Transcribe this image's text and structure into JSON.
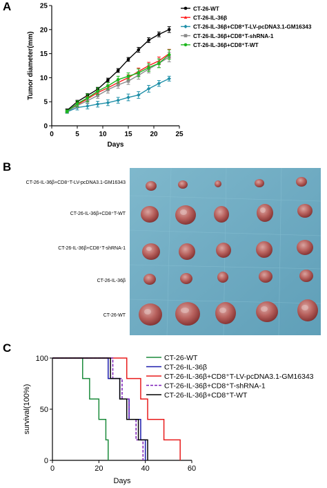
{
  "panels": {
    "a": "A",
    "b": "B",
    "c": "C"
  },
  "colors": {
    "wt": "#000000",
    "il36b": "#ff1a1a",
    "lv": "#1f8fa8",
    "sh": "#8a8a8a",
    "cd8wt": "#1db71d",
    "surv_wt": "#1a8a3a",
    "surv_il36b": "#1a1aaa",
    "surv_lv": "#e81a1a",
    "surv_sh": "#7a1ab8",
    "surv_cd8wt": "#000000"
  },
  "panel_b": {
    "row_labels": [
      "CT-26-IL-36β+CD8⁺T-LV-pcDNA3.1-GM16343",
      "CT-26-IL-36β+CD8⁺T-WT",
      "CT-26-IL-36β+CD8⁺T-shRNA-1",
      "CT-26-IL-36β",
      "CT-26-WT"
    ]
  },
  "chart_data": [
    {
      "type": "line",
      "xlabel": "Days",
      "ylabel": "Tumor diameter(mm)",
      "xlim": [
        0,
        25
      ],
      "ylim": [
        0,
        25
      ],
      "xticks": [
        0,
        5,
        10,
        15,
        20,
        25
      ],
      "yticks": [
        0,
        5,
        10,
        15,
        20,
        25
      ],
      "x": [
        3,
        5,
        7,
        9,
        11,
        13,
        15,
        17,
        19,
        21,
        23
      ],
      "legend_position": "top-right",
      "series": [
        {
          "name": "CT-26-WT",
          "marker": "dot",
          "values": [
            3.2,
            5.0,
            6.3,
            7.6,
            9.5,
            11.5,
            13.8,
            15.8,
            17.8,
            19.0,
            20.0
          ],
          "errors": [
            0.3,
            0.3,
            0.4,
            0.4,
            0.4,
            0.4,
            0.4,
            0.5,
            0.5,
            0.5,
            0.6
          ]
        },
        {
          "name": "CT-26-IL-36β",
          "marker": "triangle",
          "values": [
            3.0,
            4.4,
            5.6,
            6.9,
            7.9,
            9.0,
            10.0,
            11.3,
            12.5,
            13.5,
            15.0
          ],
          "errors": [
            0.3,
            0.4,
            0.5,
            0.5,
            0.6,
            0.6,
            0.6,
            0.7,
            0.7,
            0.8,
            0.9
          ]
        },
        {
          "name": "CT-26-IL-36β+CD8⁺T-LV-pcDNA3.1-GM16343",
          "marker": "diamond",
          "values": [
            2.9,
            3.8,
            4.1,
            4.5,
            4.8,
            5.3,
            5.9,
            6.4,
            7.7,
            8.8,
            9.8
          ],
          "errors": [
            0.3,
            0.5,
            0.6,
            0.6,
            0.6,
            0.6,
            0.7,
            0.7,
            0.7,
            0.6,
            0.5
          ]
        },
        {
          "name": "CT-26-IL-36β+CD8⁺T-shRNA-1",
          "marker": "square",
          "values": [
            3.0,
            4.2,
            5.2,
            6.3,
            7.5,
            8.5,
            9.3,
            10.5,
            11.8,
            13.0,
            14.3
          ],
          "errors": [
            0.3,
            0.5,
            0.6,
            0.6,
            0.7,
            0.7,
            0.7,
            0.8,
            0.8,
            0.9,
            1.0
          ]
        },
        {
          "name": "CT-26-IL-36β+CD8⁺T-WT",
          "marker": "dot",
          "values": [
            3.0,
            4.6,
            5.8,
            7.2,
            8.3,
            9.6,
            10.3,
            11.0,
            12.1,
            13.0,
            14.8
          ],
          "errors": [
            0.3,
            0.6,
            0.8,
            0.7,
            0.7,
            0.7,
            0.7,
            0.8,
            0.8,
            0.9,
            1.0
          ]
        }
      ]
    },
    {
      "type": "line",
      "step": true,
      "xlabel": "Days",
      "ylabel": "survival(100%)",
      "xlim": [
        0,
        60
      ],
      "ylim": [
        0,
        100
      ],
      "xticks": [
        0,
        20,
        40,
        60
      ],
      "yticks": [
        0,
        50,
        100
      ],
      "legend_position": "top-right",
      "series": [
        {
          "name": "CT-26-WT",
          "style": "solid",
          "x": [
            0,
            13,
            13,
            16,
            16,
            20,
            20,
            23,
            23,
            24,
            24
          ],
          "values": [
            100,
            100,
            80,
            80,
            60,
            60,
            40,
            40,
            20,
            20,
            0
          ]
        },
        {
          "name": "CT-26-IL-36β",
          "style": "solid",
          "x": [
            0,
            24,
            24,
            29,
            29,
            33,
            33,
            38,
            38,
            40,
            40
          ],
          "values": [
            100,
            100,
            80,
            80,
            60,
            60,
            40,
            40,
            20,
            20,
            0
          ]
        },
        {
          "name": "CT-26-IL-36β+CD8⁺T-LV-pcDNA3.1-GM16343",
          "style": "solid",
          "x": [
            0,
            32,
            32,
            38,
            38,
            41,
            41,
            48,
            48,
            55,
            55
          ],
          "values": [
            100,
            100,
            80,
            80,
            60,
            60,
            40,
            40,
            20,
            20,
            0
          ]
        },
        {
          "name": "CT-26-IL-36β+CD8⁺T-shRNA-1",
          "style": "dashed",
          "x": [
            0,
            26,
            26,
            30,
            30,
            33,
            33,
            36,
            36,
            39,
            39
          ],
          "values": [
            100,
            100,
            80,
            80,
            60,
            60,
            40,
            40,
            20,
            20,
            0
          ]
        },
        {
          "name": "CT-26-IL-36β+CD8⁺T-WT",
          "style": "solid",
          "x": [
            0,
            25,
            25,
            29,
            29,
            32,
            32,
            37,
            37,
            41,
            41
          ],
          "values": [
            100,
            100,
            80,
            80,
            60,
            60,
            40,
            40,
            20,
            20,
            0
          ]
        }
      ]
    }
  ]
}
